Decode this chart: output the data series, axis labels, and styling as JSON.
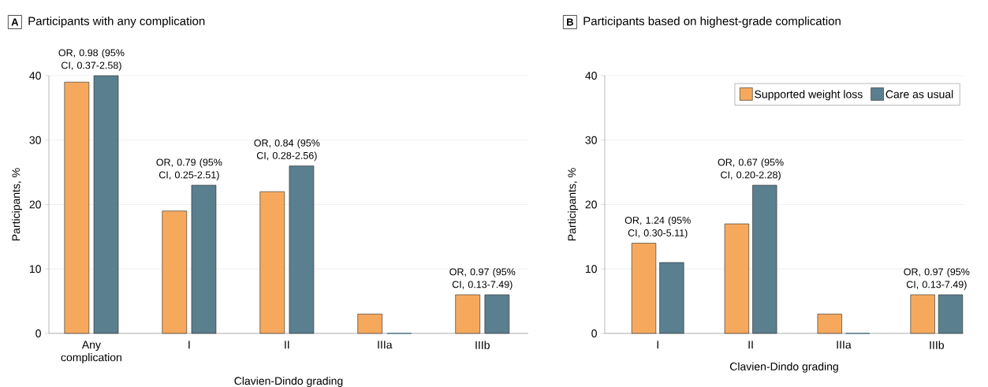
{
  "chart_data": [
    {
      "type": "bar",
      "title": "Participants with any complication",
      "xlabel": "Clavien-Dindo grading",
      "ylabel": "Participants, %",
      "categories": [
        "Any complication",
        "I",
        "II",
        "IIIa",
        "IIIb"
      ],
      "series": [
        {
          "color": "#f6a95d",
          "values": [
            39,
            19,
            22,
            3,
            6
          ]
        },
        {
          "color": "#5a7f8e",
          "values": [
            40,
            23,
            26,
            0,
            6
          ]
        }
      ],
      "ylim": [
        0,
        40
      ],
      "yticks": [
        0,
        10,
        20,
        30,
        40
      ],
      "grid": "y",
      "annotations": [
        "A",
        {
          "text": "OR, 0.98 (95% CI, 0.37-2.58)",
          "x": "Any complication",
          "y": 40
        },
        {
          "text": "OR, 0.79 (95% CI, 0.25-2.51)",
          "x": "I",
          "y": 23
        },
        {
          "text": "OR, 0.84 (95% CI, 0.28-2.56)",
          "x": "II",
          "y": 26
        },
        {
          "text": "OR, 0.97 (95% CI, 0.13-7.49)",
          "x": "IIIb",
          "y": 6
        }
      ]
    },
    {
      "type": "bar",
      "title": "Participants based on highest-grade complication",
      "xlabel": "Clavien-Dindo grading",
      "ylabel": "Participants, %",
      "categories": [
        "I",
        "II",
        "IIIa",
        "IIIb"
      ],
      "series": [
        {
          "name": "Supported weight loss",
          "color": "#f6a95d",
          "values": [
            14,
            17,
            3,
            6
          ]
        },
        {
          "name": "Care as usual",
          "color": "#5a7f8e",
          "values": [
            11,
            23,
            0,
            6
          ]
        }
      ],
      "ylim": [
        0,
        40
      ],
      "yticks": [
        0,
        10,
        20,
        30,
        40
      ],
      "grid": "y",
      "legend": "top right",
      "annotations": [
        "B",
        {
          "text": "OR, 1.24 (95% CI, 0.30-5.11)",
          "x": "I",
          "y": 14
        },
        {
          "text": "OR, 0.67 (95% CI, 0.20-2.28)",
          "x": "II",
          "y": 23
        },
        {
          "text": "OR, 0.97 (95% CI, 0.13-7.49)",
          "x": "IIIb",
          "y": 6
        }
      ]
    }
  ]
}
